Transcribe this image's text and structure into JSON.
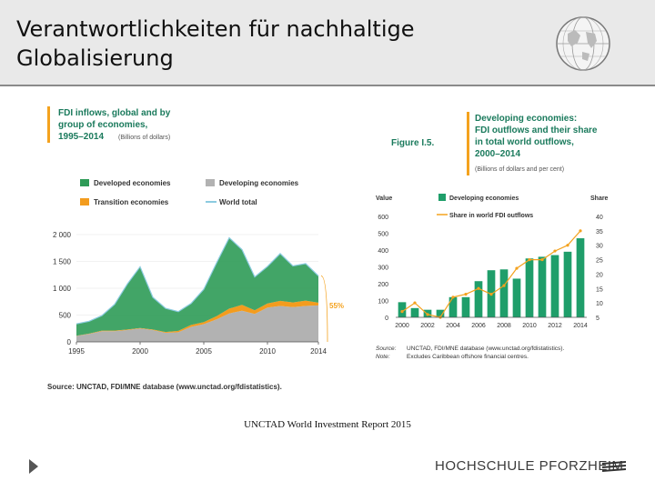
{
  "header": {
    "title": "Verantwortlichkeiten für nachhaltige Globalisierung"
  },
  "footer": {
    "caption": "UNCTAD World Investment Report 2015",
    "logo_text": "HOCHSCHULE PFORZHEIM"
  },
  "colors": {
    "developed": "#2e9b57",
    "developing": "#b2b2b2",
    "transition": "#f39c1e",
    "world_total": "#8ccbe0",
    "accent": "#f4a21e",
    "header_bg": "#e9e9e9"
  },
  "chart_data": [
    {
      "type": "area",
      "title_lines": [
        "FDI inflows, global and by",
        "group of economies,",
        "1995–2014"
      ],
      "title_unit": "(Billions of dollars)",
      "legend": [
        {
          "label": "Developed economies",
          "color": "#2e9b57"
        },
        {
          "label": "Developing economies",
          "color": "#b2b2b2"
        },
        {
          "label": "Transition economies",
          "color": "#f39c1e"
        },
        {
          "label": "World total",
          "color": "#8ccbe0"
        }
      ],
      "x": [
        1995,
        1996,
        1997,
        1998,
        1999,
        2000,
        2001,
        2002,
        2003,
        2004,
        2005,
        2006,
        2007,
        2008,
        2009,
        2010,
        2011,
        2012,
        2013,
        2014
      ],
      "xticks": [
        "1995",
        "2000",
        "2005",
        "2010",
        "2014"
      ],
      "yticks": [
        "0",
        "500",
        "1 000",
        "1 500",
        "2 000"
      ],
      "ylim": [
        0,
        2000
      ],
      "series": [
        {
          "name": "Developing economies",
          "values": [
            110,
            150,
            200,
            200,
            220,
            250,
            220,
            170,
            180,
            280,
            330,
            420,
            530,
            580,
            520,
            640,
            670,
            650,
            670,
            680
          ]
        },
        {
          "name": "Transition economies",
          "values": [
            5,
            5,
            10,
            10,
            10,
            10,
            10,
            15,
            25,
            35,
            40,
            60,
            90,
            110,
            70,
            75,
            95,
            85,
            100,
            50
          ]
        },
        {
          "name": "Developed economies",
          "values": [
            220,
            230,
            280,
            490,
            850,
            1140,
            600,
            440,
            360,
            400,
            610,
            990,
            1320,
            1030,
            620,
            690,
            880,
            680,
            690,
            500
          ]
        }
      ],
      "annotation": "55%",
      "source": "Source: UNCTAD, FDI/MNE database (www.unctad.org/fdistatistics)."
    },
    {
      "type": "bar",
      "figure_label": "Figure I.5.",
      "title_lines": [
        "Developing economies:",
        "FDI outflows and their share",
        "in total world outflows,",
        "2000–2014"
      ],
      "title_unit": "(Billions of dollars and per cent)",
      "left_axis_label": "Value",
      "right_axis_label": "Share",
      "legend": [
        {
          "label": "Developing economies",
          "color": "#1f9e6a"
        },
        {
          "label": "Share in world FDI outflows",
          "color": "#f4a21e"
        }
      ],
      "x": [
        2000,
        2001,
        2002,
        2003,
        2004,
        2005,
        2006,
        2007,
        2008,
        2009,
        2010,
        2011,
        2012,
        2013,
        2014
      ],
      "xticks": [
        "2000",
        "2002",
        "2004",
        "2006",
        "2008",
        "2010",
        "2012",
        "2014"
      ],
      "yticks_left": [
        "0",
        "100",
        "200",
        "300",
        "400",
        "500",
        "600"
      ],
      "yticks_right": [
        "5",
        "10",
        "15",
        "20",
        "25",
        "30",
        "35",
        "40"
      ],
      "ylim_left": [
        0,
        600
      ],
      "ylim_right": [
        5,
        40
      ],
      "series": [
        {
          "name": "Developing economies",
          "values": [
            90,
            55,
            45,
            45,
            120,
            120,
            215,
            280,
            285,
            230,
            350,
            360,
            370,
            390,
            470
          ]
        },
        {
          "name": "Share in world FDI outflows",
          "values": [
            7,
            10,
            6,
            5,
            12,
            13,
            15,
            13,
            16,
            22,
            25,
            25,
            28,
            30,
            35
          ]
        }
      ],
      "source_lines": [
        "UNCTAD, FDI/MNE database (www.unctad.org/fdistatistics).",
        "Excludes Caribbean offshore financial centres."
      ],
      "source_labels": [
        "Source:",
        "Note:"
      ]
    }
  ]
}
